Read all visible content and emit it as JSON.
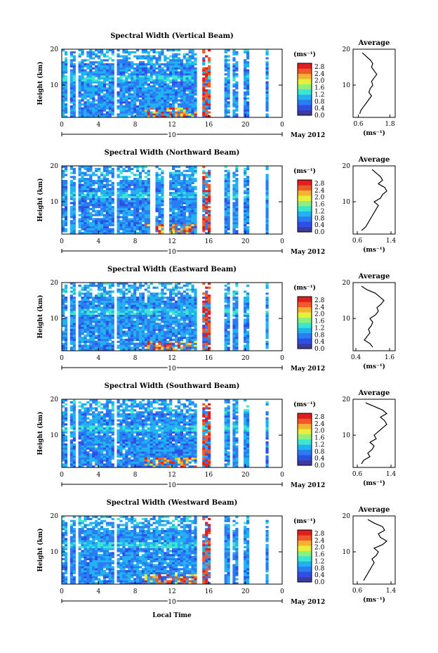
{
  "footer": {
    "xlabel": "Local Time"
  },
  "colorbar": {
    "unit": "(ms⁻¹)",
    "ticks": [
      "0.0",
      "0.4",
      "0.8",
      "1.2",
      "1.6",
      "2.0",
      "2.4",
      "2.8"
    ],
    "range": [
      0.0,
      3.0
    ],
    "colors": [
      "#3c3ca0",
      "#2d4fe6",
      "#2a7cf2",
      "#22b2f2",
      "#3ce6d0",
      "#8cf07a",
      "#e6f03c",
      "#f4b232",
      "#f05a28",
      "#e01e1e"
    ]
  },
  "avg_label": "Average",
  "avg_unit": "(ms⁻¹)",
  "chart_data": [
    {
      "type": "heatmap",
      "title": "Spectral Width (Vertical Beam)",
      "ylabel": "Height (km)",
      "yticks": [
        "20",
        "10"
      ],
      "xticks": [
        "0",
        "4",
        "8",
        "12",
        "16",
        "20",
        "0"
      ],
      "xlim": [
        0,
        24
      ],
      "ylim": [
        1,
        20
      ],
      "day_label": "10",
      "date_label": "May 2012",
      "gaps": [
        [
          0.7,
          1.0
        ],
        [
          1.5,
          1.9
        ],
        [
          5.8,
          6.0
        ],
        [
          14.8,
          15.2
        ],
        [
          16.3,
          17.6
        ],
        [
          18.3,
          18.7
        ],
        [
          19.2,
          19.8
        ],
        [
          20.5,
          22.2
        ],
        [
          22.5,
          24.0
        ]
      ],
      "average": {
        "title": "Average",
        "xticks": [
          "0.6",
          "1.8"
        ],
        "xlim": [
          0.4,
          2.0
        ],
        "heights": [
          2,
          3,
          4,
          5,
          6,
          7,
          8,
          9,
          10,
          11,
          12,
          13,
          14,
          15,
          16,
          17,
          18,
          19
        ],
        "values": [
          0.65,
          0.7,
          0.8,
          0.9,
          1.0,
          1.1,
          1.0,
          1.05,
          1.15,
          1.1,
          1.2,
          1.3,
          1.2,
          1.1,
          1.15,
          1.05,
          0.9,
          0.75
        ]
      }
    },
    {
      "type": "heatmap",
      "title": "Spectral Width (Northward Beam)",
      "ylabel": "Height (km)",
      "yticks": [
        "20",
        "10"
      ],
      "xticks": [
        "0",
        "4",
        "8",
        "12",
        "16",
        "20",
        "0"
      ],
      "xlim": [
        0,
        24
      ],
      "ylim": [
        1,
        20
      ],
      "day_label": "10",
      "date_label": "May 2012",
      "gaps": [
        [
          0.7,
          1.0
        ],
        [
          1.5,
          1.9
        ],
        [
          5.8,
          6.0
        ],
        [
          9.7,
          10.2
        ],
        [
          11.0,
          11.6
        ],
        [
          14.8,
          15.2
        ],
        [
          16.3,
          17.6
        ],
        [
          18.3,
          18.7
        ],
        [
          19.2,
          19.8
        ],
        [
          20.5,
          22.2
        ],
        [
          22.5,
          24.0
        ]
      ],
      "average": {
        "title": "Average",
        "xticks": [
          "0.6",
          "1.4"
        ],
        "xlim": [
          0.5,
          1.5
        ],
        "heights": [
          2,
          3,
          4,
          5,
          6,
          7,
          8,
          9,
          10,
          11,
          12,
          13,
          14,
          15,
          16,
          17,
          18,
          19
        ],
        "values": [
          0.7,
          0.8,
          0.85,
          0.9,
          0.95,
          1.0,
          1.05,
          1.1,
          1.0,
          1.15,
          1.2,
          1.3,
          1.25,
          1.1,
          1.2,
          1.15,
          1.05,
          0.95
        ]
      }
    },
    {
      "type": "heatmap",
      "title": "Spectral Width (Eastward Beam)",
      "ylabel": "Height (km)",
      "yticks": [
        "20",
        "10"
      ],
      "xticks": [
        "0",
        "4",
        "8",
        "12",
        "16",
        "20",
        "0"
      ],
      "xlim": [
        0,
        24
      ],
      "ylim": [
        1,
        20
      ],
      "day_label": "10",
      "date_label": "May 2012",
      "gaps": [
        [
          0.7,
          1.0
        ],
        [
          1.5,
          1.9
        ],
        [
          5.8,
          6.0
        ],
        [
          14.8,
          15.2
        ],
        [
          16.3,
          17.6
        ],
        [
          18.3,
          18.7
        ],
        [
          19.2,
          19.8
        ],
        [
          20.5,
          22.2
        ],
        [
          22.5,
          24.0
        ]
      ],
      "average": {
        "title": "Average",
        "xticks": [
          "0.4",
          "1.6"
        ],
        "xlim": [
          0.3,
          1.8
        ],
        "heights": [
          2,
          3,
          4,
          5,
          6,
          7,
          8,
          9,
          10,
          11,
          12,
          13,
          14,
          15,
          16,
          17,
          18,
          19
        ],
        "values": [
          1.0,
          0.9,
          0.7,
          0.8,
          0.9,
          0.85,
          0.95,
          1.0,
          0.9,
          1.1,
          1.2,
          1.15,
          1.3,
          1.4,
          1.25,
          1.1,
          0.8,
          0.6
        ]
      }
    },
    {
      "type": "heatmap",
      "title": "Spectral Width (Southward Beam)",
      "ylabel": "Height (km)",
      "yticks": [
        "20",
        "10"
      ],
      "xticks": [
        "0",
        "4",
        "8",
        "12",
        "16",
        "20",
        "0"
      ],
      "xlim": [
        0,
        24
      ],
      "ylim": [
        1,
        20
      ],
      "day_label": "10",
      "date_label": "May 2012",
      "gaps": [
        [
          0.7,
          1.0
        ],
        [
          1.5,
          1.9
        ],
        [
          5.8,
          6.0
        ],
        [
          14.8,
          15.2
        ],
        [
          16.3,
          17.6
        ],
        [
          18.3,
          18.7
        ],
        [
          19.2,
          19.8
        ],
        [
          20.5,
          22.2
        ],
        [
          22.5,
          24.0
        ]
      ],
      "average": {
        "title": "Average",
        "xticks": [
          "0.6",
          "1.4"
        ],
        "xlim": [
          0.5,
          1.5
        ],
        "heights": [
          2,
          3,
          4,
          5,
          6,
          7,
          8,
          9,
          10,
          11,
          12,
          13,
          14,
          15,
          16,
          17,
          18,
          19
        ],
        "values": [
          0.7,
          0.75,
          0.9,
          0.85,
          0.95,
          1.0,
          0.9,
          1.05,
          1.0,
          1.1,
          1.2,
          1.3,
          1.25,
          1.15,
          1.3,
          1.2,
          1.0,
          0.8
        ]
      }
    },
    {
      "type": "heatmap",
      "title": "Spectral Width (Westward Beam)",
      "ylabel": "Height (km)",
      "yticks": [
        "20",
        "10"
      ],
      "xticks": [
        "0",
        "4",
        "8",
        "12",
        "16",
        "20",
        "0"
      ],
      "xlim": [
        0,
        24
      ],
      "ylim": [
        1,
        20
      ],
      "day_label": "10",
      "date_label": "May 2012",
      "gaps": [
        [
          0.7,
          1.0
        ],
        [
          1.5,
          1.9
        ],
        [
          5.8,
          6.0
        ],
        [
          14.8,
          15.2
        ],
        [
          16.3,
          17.6
        ],
        [
          18.3,
          18.7
        ],
        [
          19.2,
          19.8
        ],
        [
          20.5,
          22.2
        ],
        [
          22.5,
          24.0
        ]
      ],
      "average": {
        "title": "Average",
        "xticks": [
          "0.6",
          "1.4"
        ],
        "xlim": [
          0.5,
          1.5
        ],
        "heights": [
          2,
          3,
          4,
          5,
          6,
          7,
          8,
          9,
          10,
          11,
          12,
          13,
          14,
          15,
          16,
          17,
          18,
          19
        ],
        "values": [
          0.75,
          0.8,
          0.85,
          0.9,
          0.95,
          1.0,
          0.95,
          1.05,
          1.1,
          1.0,
          1.2,
          1.3,
          1.15,
          1.1,
          1.25,
          1.2,
          1.0,
          0.85
        ]
      }
    }
  ]
}
